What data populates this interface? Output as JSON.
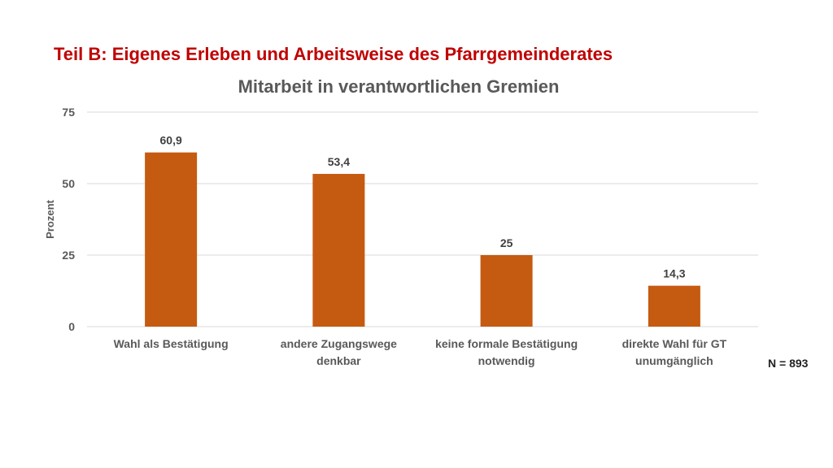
{
  "slide": {
    "heading": "Teil B: Eigenes Erleben und Arbeitsweise des Pfarrgemeinderates",
    "sample_note": "N = 893"
  },
  "chart_data": {
    "type": "bar",
    "title": "Mitarbeit in verantwortlichen Gremien",
    "xlabel": "",
    "ylabel": "Prozent",
    "ylim": [
      0,
      75
    ],
    "yticks": [
      0,
      25,
      50,
      75
    ],
    "categories": [
      [
        "Wahl als Bestätigung"
      ],
      [
        "andere Zugangswege",
        "denkbar"
      ],
      [
        "keine formale Bestätigung",
        "notwendig"
      ],
      [
        "direkte Wahl für GT",
        "unumgänglich"
      ]
    ],
    "values": [
      60.9,
      53.4,
      25,
      14.3
    ],
    "data_labels": [
      "60,9",
      "53,4",
      "25",
      "14,3"
    ],
    "bar_color": "#c55a11",
    "grid": true,
    "legend": "none"
  }
}
